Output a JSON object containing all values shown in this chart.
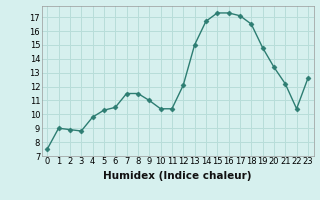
{
  "x": [
    0,
    1,
    2,
    3,
    4,
    5,
    6,
    7,
    8,
    9,
    10,
    11,
    12,
    13,
    14,
    15,
    16,
    17,
    18,
    19,
    20,
    21,
    22,
    23
  ],
  "y": [
    7.5,
    9.0,
    8.9,
    8.8,
    9.8,
    10.3,
    10.5,
    11.5,
    11.5,
    11.0,
    10.4,
    10.4,
    12.1,
    15.0,
    16.7,
    17.3,
    17.3,
    17.1,
    16.5,
    14.8,
    13.4,
    12.2,
    10.4,
    12.6
  ],
  "xlim": [
    -0.5,
    23.5
  ],
  "ylim": [
    7,
    17.8
  ],
  "yticks": [
    7,
    8,
    9,
    10,
    11,
    12,
    13,
    14,
    15,
    16,
    17
  ],
  "xticks": [
    0,
    1,
    2,
    3,
    4,
    5,
    6,
    7,
    8,
    9,
    10,
    11,
    12,
    13,
    14,
    15,
    16,
    17,
    18,
    19,
    20,
    21,
    22,
    23
  ],
  "xlabel": "Humidex (Indice chaleur)",
  "line_color": "#2d7d72",
  "marker": "D",
  "marker_size": 2.5,
  "bg_color": "#d6f0ee",
  "grid_color": "#b8ddd9",
  "tick_fontsize": 6,
  "xlabel_fontsize": 7.5
}
